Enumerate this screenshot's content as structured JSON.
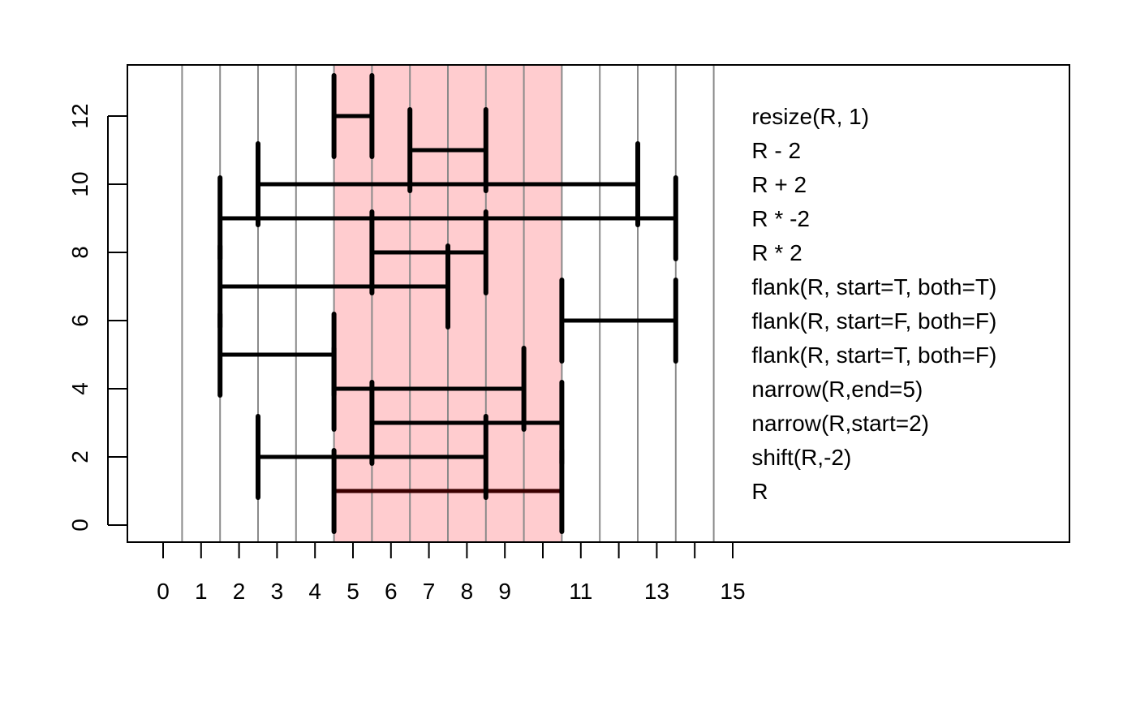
{
  "chart_data": {
    "type": "range-bar",
    "title": "",
    "xlabel": "",
    "ylabel": "",
    "xlim": [
      -1,
      24
    ],
    "ylim": [
      -0.5,
      13.5
    ],
    "x_ticks": [
      0,
      1,
      2,
      3,
      4,
      5,
      6,
      7,
      8,
      9,
      10,
      11,
      12,
      13,
      14,
      15
    ],
    "x_tick_labels": [
      "0",
      "1",
      "2",
      "3",
      "4",
      "5",
      "6",
      "7",
      "8",
      "9",
      "",
      "11",
      "",
      "13",
      "",
      "15"
    ],
    "y_ticks": [
      0,
      2,
      4,
      6,
      8,
      10,
      12
    ],
    "y_tick_labels": [
      "0",
      "2",
      "4",
      "6",
      "8",
      "10",
      "12"
    ],
    "grid_x": [
      0.5,
      1.5,
      2.5,
      3.5,
      4.5,
      5.5,
      6.5,
      7.5,
      8.5,
      9.5,
      10.5,
      11.5,
      12.5,
      13.5,
      14.5
    ],
    "highlight": {
      "start": 4.5,
      "end": 10.5,
      "color": "#ffcccf"
    },
    "ranges": [
      {
        "label": "R",
        "y": 1,
        "start": 4.5,
        "end": 10.5,
        "color": "#3a0000"
      },
      {
        "label": "shift(R,-2)",
        "y": 2,
        "start": 2.5,
        "end": 8.5,
        "color": "#000000"
      },
      {
        "label": "narrow(R,start=2)",
        "y": 3,
        "start": 5.5,
        "end": 10.5,
        "color": "#000000"
      },
      {
        "label": "narrow(R,end=5)",
        "y": 4,
        "start": 4.5,
        "end": 9.5,
        "color": "#000000"
      },
      {
        "label": "flank(R, start=T, both=F)",
        "y": 5,
        "start": 1.5,
        "end": 4.5,
        "color": "#000000"
      },
      {
        "label": "flank(R, start=F, both=F)",
        "y": 6,
        "start": 10.5,
        "end": 13.5,
        "color": "#000000"
      },
      {
        "label": "flank(R, start=T, both=T)",
        "y": 7,
        "start": 1.5,
        "end": 7.5,
        "color": "#000000"
      },
      {
        "label": "R * 2",
        "y": 8,
        "start": 5.5,
        "end": 8.5,
        "color": "#000000"
      },
      {
        "label": "R * -2",
        "y": 9,
        "start": 1.5,
        "end": 13.5,
        "color": "#000000"
      },
      {
        "label": "R + 2",
        "y": 10,
        "start": 2.5,
        "end": 12.5,
        "color": "#000000"
      },
      {
        "label": "R - 2",
        "y": 11,
        "start": 6.5,
        "end": 8.5,
        "color": "#000000"
      },
      {
        "label": "resize(R, 1)",
        "y": 12,
        "start": 4.5,
        "end": 5.5,
        "color": "#000000"
      }
    ],
    "label_x": 15.5,
    "grid": true,
    "legend": "none"
  }
}
